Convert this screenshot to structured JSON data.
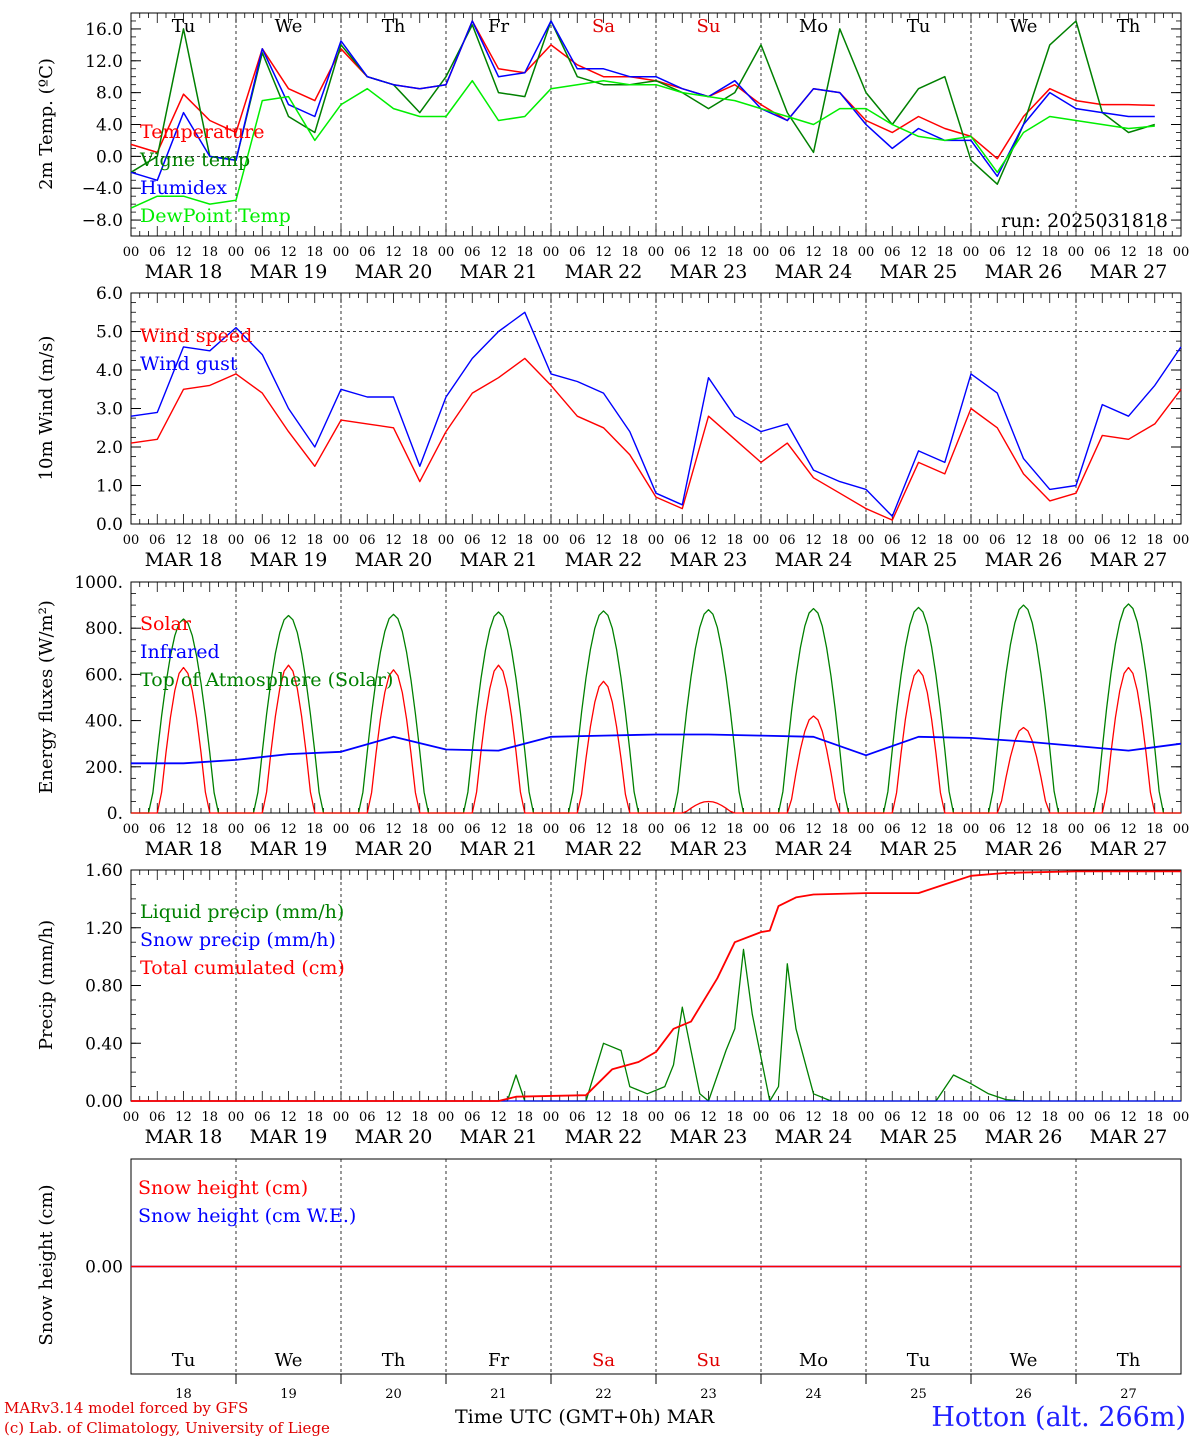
{
  "days": {
    "abbr": [
      "Tu",
      "We",
      "Th",
      "Fr",
      "Sa",
      "Su",
      "Mo",
      "Tu",
      "We",
      "Th"
    ],
    "weekend_color": "#e00000",
    "weekend_index": [
      4,
      5
    ],
    "labels": [
      "MAR 18",
      "MAR 19",
      "MAR 20",
      "MAR 21",
      "MAR 22",
      "MAR 23",
      "MAR 24",
      "MAR 25",
      "MAR 26",
      "MAR 27"
    ],
    "numbers": [
      "18",
      "19",
      "20",
      "21",
      "22",
      "23",
      "24",
      "25",
      "26",
      "27"
    ],
    "hour_ticks": [
      "00",
      "06",
      "12",
      "18"
    ],
    "end_tick": "00"
  },
  "footer": {
    "credit_line1": "MARv3.14 model forced by GFS",
    "credit_line2": "(c) Lab. of Climatology, University of Liege",
    "xaxis_title": "Time UTC (GMT+0h)",
    "month": "MAR",
    "station": "Hotton (alt. 266m)"
  },
  "chart_data": [
    {
      "type": "line",
      "ylabel": "2m Temp. (ºC)",
      "ylim": [
        -10,
        18
      ],
      "yticks": [
        "16.0",
        "12.0",
        "8.0",
        "4.0",
        "0.0",
        "−4.0",
        "−8.0"
      ],
      "ytick_values": [
        16,
        12,
        8,
        4,
        0,
        -4,
        -8
      ],
      "annotation": "run: 2025031818",
      "zero_line": 0,
      "x_unit": "hours since MAR 18 00 UTC",
      "series": [
        {
          "name": "Temperature",
          "color": "#ff0000",
          "x": [
            0,
            6,
            12,
            18,
            24,
            30,
            36,
            42,
            48,
            54,
            60,
            66,
            72,
            78,
            84,
            90,
            96,
            102,
            108,
            114,
            120,
            126,
            132,
            138,
            144,
            150,
            156,
            162,
            168,
            174,
            180,
            186,
            192,
            198,
            204,
            210,
            216,
            222,
            228,
            234
          ],
          "y": [
            1.5,
            0.5,
            7.8,
            4.5,
            3,
            13.5,
            8.5,
            7,
            13.5,
            10,
            9,
            8.5,
            9,
            17,
            11,
            10.5,
            14,
            11.5,
            10,
            10,
            9.5,
            8.5,
            7.5,
            9,
            6.5,
            4.5,
            8.5,
            8,
            4.5,
            3,
            5,
            3.5,
            2.5,
            -0.3,
            5,
            8.5,
            7,
            6.5,
            6.5,
            6.4
          ]
        },
        {
          "name": "Vigne temp",
          "color": "#008000",
          "x": [
            0,
            6,
            12,
            18,
            24,
            30,
            36,
            42,
            48,
            54,
            60,
            66,
            72,
            78,
            84,
            90,
            96,
            102,
            108,
            114,
            120,
            126,
            132,
            138,
            144,
            150,
            156,
            162,
            168,
            174,
            180,
            186,
            192,
            198,
            204,
            210,
            216,
            222,
            228,
            234
          ],
          "y": [
            -2,
            0,
            16,
            0,
            -0.5,
            13,
            5,
            3,
            14,
            10,
            9,
            5.5,
            10,
            16.5,
            8,
            7.5,
            17,
            10,
            9,
            9,
            9.5,
            8,
            6,
            8,
            14,
            5.5,
            0.5,
            16,
            8,
            4,
            8.5,
            10,
            -0.5,
            -3.5,
            4,
            14,
            17,
            5.5,
            3,
            4
          ]
        },
        {
          "name": "Humidex",
          "color": "#0000ff",
          "x": [
            0,
            6,
            12,
            18,
            24,
            30,
            36,
            42,
            48,
            54,
            60,
            66,
            72,
            78,
            84,
            90,
            96,
            102,
            108,
            114,
            120,
            126,
            132,
            138,
            144,
            150,
            156,
            162,
            168,
            174,
            180,
            186,
            192,
            198,
            204,
            210,
            216,
            222,
            228,
            234
          ],
          "y": [
            -2,
            -3,
            5.5,
            0,
            -0.5,
            13.5,
            6.5,
            5,
            14.5,
            10,
            9,
            8.5,
            9,
            17,
            10,
            10.5,
            17,
            11,
            11,
            10,
            10,
            8.5,
            7.5,
            9.5,
            6,
            4.5,
            8.5,
            8,
            4,
            1,
            3.5,
            2,
            2,
            -2.5,
            4,
            8,
            6,
            5.5,
            5,
            5
          ]
        },
        {
          "name": "DewPoint Temp",
          "color": "#00ee00",
          "x": [
            0,
            6,
            12,
            18,
            24,
            30,
            36,
            42,
            48,
            54,
            60,
            66,
            72,
            78,
            84,
            90,
            96,
            102,
            108,
            114,
            120,
            126,
            132,
            138,
            144,
            150,
            156,
            162,
            168,
            174,
            180,
            186,
            192,
            198,
            204,
            210,
            216,
            222,
            228,
            234
          ],
          "y": [
            -6.5,
            -5,
            -5,
            -6,
            -5.5,
            7,
            7.5,
            2,
            6.5,
            8.5,
            6,
            5,
            5,
            9.5,
            4.5,
            5,
            8.5,
            9,
            9.5,
            9,
            9,
            8,
            7.5,
            7,
            6,
            5,
            4,
            6,
            6,
            4,
            2.5,
            2,
            2.5,
            -2,
            3,
            5,
            4.5,
            4,
            3.5,
            3.8
          ]
        }
      ]
    },
    {
      "type": "line",
      "ylabel": "10m Wind (m/s)",
      "ylim": [
        0,
        6
      ],
      "yticks": [
        "6.0",
        "5.0",
        "4.0",
        "3.0",
        "2.0",
        "1.0",
        "0.0"
      ],
      "ytick_values": [
        6,
        5,
        4,
        3,
        2,
        1,
        0
      ],
      "ref_line": 5,
      "x_unit": "hours since MAR 18 00 UTC",
      "series": [
        {
          "name": "Wind speed",
          "color": "#ff0000",
          "x": [
            0,
            6,
            12,
            18,
            24,
            30,
            36,
            42,
            48,
            54,
            60,
            66,
            72,
            78,
            84,
            90,
            96,
            102,
            108,
            114,
            120,
            126,
            132,
            138,
            144,
            150,
            156,
            162,
            168,
            174,
            180,
            186,
            192,
            198,
            204,
            210,
            216,
            222,
            228,
            234,
            240
          ],
          "y": [
            2.1,
            2.2,
            3.5,
            3.6,
            3.9,
            3.4,
            2.4,
            1.5,
            2.7,
            2.6,
            2.5,
            1.1,
            2.4,
            3.4,
            3.8,
            4.3,
            3.6,
            2.8,
            2.5,
            1.8,
            0.7,
            0.4,
            2.8,
            2.2,
            1.6,
            2.1,
            1.2,
            0.8,
            0.4,
            0.1,
            1.6,
            1.3,
            3.0,
            2.5,
            1.3,
            0.6,
            0.8,
            2.3,
            2.2,
            2.6,
            3.5
          ]
        },
        {
          "name": "Wind gust",
          "color": "#0000ff",
          "x": [
            0,
            6,
            12,
            18,
            24,
            30,
            36,
            42,
            48,
            54,
            60,
            66,
            72,
            78,
            84,
            90,
            96,
            102,
            108,
            114,
            120,
            126,
            132,
            138,
            144,
            150,
            156,
            162,
            168,
            174,
            180,
            186,
            192,
            198,
            204,
            210,
            216,
            222,
            228,
            234,
            240
          ],
          "y": [
            2.8,
            2.9,
            4.6,
            4.5,
            5.1,
            4.4,
            3.0,
            2.0,
            3.5,
            3.3,
            3.3,
            1.5,
            3.3,
            4.3,
            5.0,
            5.5,
            3.9,
            3.7,
            3.4,
            2.4,
            0.8,
            0.5,
            3.8,
            2.8,
            2.4,
            2.6,
            1.4,
            1.1,
            0.9,
            0.2,
            1.9,
            1.6,
            3.9,
            3.4,
            1.7,
            0.9,
            1.0,
            3.1,
            2.8,
            3.6,
            4.6
          ]
        }
      ]
    },
    {
      "type": "line",
      "ylabel": "Energy fluxes (W/m²)",
      "ylim": [
        0,
        1000
      ],
      "yticks": [
        "1000.",
        "800.",
        "600.",
        "400.",
        "200.",
        "0."
      ],
      "ytick_values": [
        1000,
        800,
        600,
        400,
        200,
        0
      ],
      "x_unit": "hours since MAR 18 00 UTC",
      "series": [
        {
          "name": "Solar",
          "color": "#ff0000",
          "peaks_x": [
            12,
            36,
            60,
            84,
            108,
            132,
            156,
            180,
            204,
            228
          ],
          "peaks_y": [
            630,
            640,
            620,
            640,
            570,
            50,
            420,
            620,
            370,
            630
          ]
        },
        {
          "name": "Infrared",
          "color": "#0000ff",
          "x": [
            0,
            12,
            24,
            36,
            48,
            60,
            72,
            84,
            96,
            108,
            120,
            132,
            144,
            156,
            168,
            180,
            192,
            204,
            216,
            228,
            240
          ],
          "y": [
            215,
            215,
            230,
            255,
            265,
            330,
            275,
            270,
            330,
            335,
            340,
            340,
            335,
            330,
            250,
            330,
            325,
            310,
            290,
            270,
            300
          ]
        },
        {
          "name": "Top of Atmosphere (Solar)",
          "color": "#008000",
          "peaks_x": [
            12,
            36,
            60,
            84,
            108,
            132,
            156,
            180,
            204,
            228
          ],
          "peaks_y": [
            840,
            855,
            860,
            870,
            875,
            880,
            885,
            890,
            900,
            905
          ]
        }
      ]
    },
    {
      "type": "line",
      "ylabel": "Precip (mm/h)",
      "ylim": [
        0,
        1.6
      ],
      "yticks": [
        "1.60",
        "1.20",
        "0.80",
        "0.40",
        "0.00"
      ],
      "ytick_values": [
        1.6,
        1.2,
        0.8,
        0.4,
        0
      ],
      "x_unit": "hours since MAR 18 00 UTC",
      "series": [
        {
          "name": "Liquid precip (mm/h)",
          "color": "#008000",
          "x": [
            0,
            86,
            88,
            90,
            92,
            104,
            108,
            112,
            114,
            118,
            122,
            124,
            126,
            128,
            130,
            132,
            136,
            138,
            140,
            142,
            146,
            148,
            150,
            152,
            156,
            160,
            164,
            170,
            184,
            188,
            192,
            196,
            200,
            204,
            240
          ],
          "y": [
            0,
            0,
            0.18,
            0,
            0,
            0,
            0.4,
            0.35,
            0.1,
            0.05,
            0.1,
            0.25,
            0.65,
            0.35,
            0.05,
            0,
            0.35,
            0.5,
            1.05,
            0.6,
            0,
            0.1,
            0.95,
            0.5,
            0.05,
            0,
            0,
            0,
            0,
            0.18,
            0.12,
            0.05,
            0.01,
            0,
            0
          ]
        },
        {
          "name": "Snow precip (mm/h)",
          "color": "#0000ff",
          "x": [
            0,
            240
          ],
          "y": [
            0,
            0
          ]
        },
        {
          "name": "Total cumulated (cm)",
          "color": "#ff0000",
          "x": [
            0,
            84,
            88,
            104,
            110,
            116,
            120,
            124,
            128,
            134,
            138,
            144,
            146,
            148,
            152,
            156,
            168,
            180,
            186,
            192,
            200,
            216,
            240
          ],
          "y": [
            0,
            0,
            0.03,
            0.04,
            0.22,
            0.27,
            0.34,
            0.5,
            0.55,
            0.85,
            1.1,
            1.17,
            1.18,
            1.35,
            1.41,
            1.43,
            1.44,
            1.44,
            1.5,
            1.56,
            1.58,
            1.59,
            1.59
          ]
        }
      ]
    },
    {
      "type": "line",
      "ylabel": "Snow height (cm)",
      "ylim": [
        -1,
        1
      ],
      "yticks": [
        "0.00"
      ],
      "ytick_values": [
        0
      ],
      "x_unit": "hours since MAR 18 00 UTC",
      "series": [
        {
          "name": "Snow height (cm)",
          "color": "#ff0000",
          "x": [
            0,
            240
          ],
          "y": [
            0,
            0
          ]
        },
        {
          "name": "Snow height (cm W.E.)",
          "color": "#0000ff",
          "x": [
            0,
            240
          ],
          "y": [
            0,
            0
          ]
        }
      ]
    }
  ]
}
